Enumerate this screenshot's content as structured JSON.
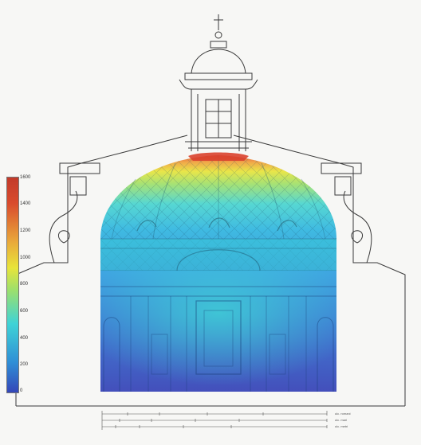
{
  "colorbar": {
    "ticks": [
      "1600",
      "1400",
      "1200",
      "1000",
      "800",
      "600",
      "400",
      "200",
      "0"
    ],
    "colors": [
      "#c23a2a",
      "#d94b2d",
      "#e9a93a",
      "#e8e43a",
      "#9fe06a",
      "#3fd3d6",
      "#2f8fd6",
      "#3446b8"
    ]
  },
  "scale_bar": {
    "labels": [
      "ulc. romani",
      "ulc. mari",
      "ulc. metri"
    ]
  },
  "colors": {
    "line": "#3a3a3a",
    "paper": "#f7f7f5"
  }
}
